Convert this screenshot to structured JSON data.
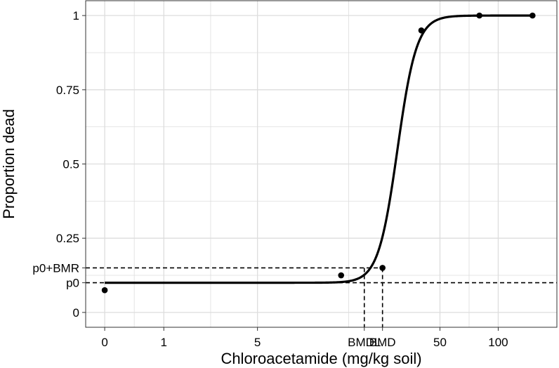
{
  "chart_data": {
    "type": "line",
    "xlabel": "Chloroacetamide (mg/kg soil)",
    "ylabel": "Proportion dead",
    "x_scale": "log1p",
    "xlim": [
      -0.2,
      200
    ],
    "ylim": [
      -0.05,
      1.05
    ],
    "x_ticks": [
      {
        "value": 0,
        "label": "0"
      },
      {
        "value": 1,
        "label": "1"
      },
      {
        "value": 5,
        "label": "5"
      },
      {
        "value": 50,
        "label": "50"
      },
      {
        "value": 100,
        "label": "100"
      }
    ],
    "y_ticks": [
      {
        "value": 0,
        "label": "0"
      },
      {
        "value": 0.25,
        "label": "0.25"
      },
      {
        "value": 0.5,
        "label": "0.5"
      },
      {
        "value": 0.75,
        "label": "0.75"
      },
      {
        "value": 1,
        "label": "1"
      }
    ],
    "reference_lines": {
      "p0": {
        "y": 0.1,
        "label": "p0"
      },
      "p0_plus_bmr": {
        "y": 0.15,
        "label": "p0+BMR"
      },
      "bmdl": {
        "x": 20,
        "label": "BMDL"
      },
      "bmd": {
        "x": 25,
        "label": "BMD"
      }
    },
    "series": [
      {
        "kind": "points",
        "x": [
          0,
          15,
          25,
          40,
          80,
          150
        ],
        "y": [
          0.075,
          0.125,
          0.15,
          0.95,
          1.0,
          1.0
        ]
      },
      {
        "kind": "fitted-curve",
        "model": "log-logistic",
        "p0": 0.1,
        "ec50": 30,
        "slope": 8.6
      }
    ],
    "grid": true,
    "colors": {
      "line": "#000000",
      "grid": "#dddddd",
      "panel_border": "#333333",
      "dashed": "#000000"
    }
  }
}
